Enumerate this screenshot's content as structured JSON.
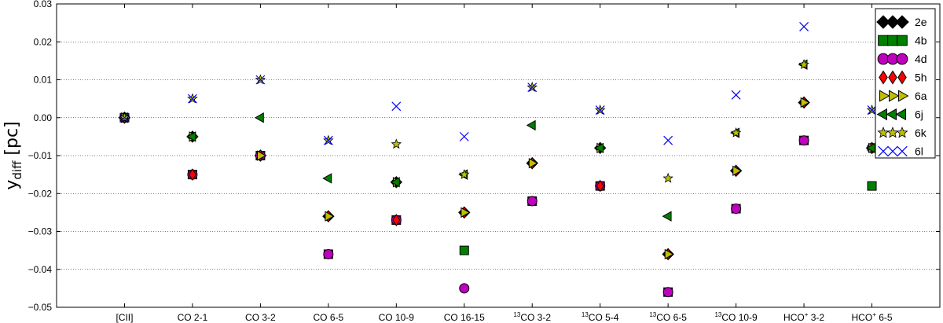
{
  "chart_data": {
    "type": "scatter",
    "ylabel_main": "y",
    "ylabel_sub": "diff",
    "ylabel_unit": "[pc]",
    "ylim": [
      -0.05,
      0.03
    ],
    "yticks": [
      0.03,
      0.02,
      0.01,
      0.0,
      -0.01,
      -0.02,
      -0.03,
      -0.04,
      -0.05
    ],
    "ytick_labels": [
      "0.03",
      "0.02",
      "0.01",
      "0.00",
      "−0.01",
      "−0.02",
      "−0.03",
      "−0.04",
      "−0.05"
    ],
    "grid": "horizontal dotted",
    "legend_position": "top-right",
    "categories": [
      {
        "pre": "",
        "main": "[CII]",
        "sup": ""
      },
      {
        "pre": "",
        "main": "CO 2-1",
        "sup": ""
      },
      {
        "pre": "",
        "main": "CO 3-2",
        "sup": ""
      },
      {
        "pre": "",
        "main": "CO 6-5",
        "sup": ""
      },
      {
        "pre": "",
        "main": "CO 10-9",
        "sup": ""
      },
      {
        "pre": "",
        "main": "CO 16-15",
        "sup": ""
      },
      {
        "pre": "13",
        "main": "CO 3-2",
        "sup": ""
      },
      {
        "pre": "13",
        "main": "CO 5-4",
        "sup": ""
      },
      {
        "pre": "13",
        "main": "CO 6-5",
        "sup": ""
      },
      {
        "pre": "13",
        "main": "CO 10-9",
        "sup": ""
      },
      {
        "pre": "",
        "main": "HCO 3-2",
        "sup": "+"
      },
      {
        "pre": "",
        "main": "HCO 6-5",
        "sup": "+"
      }
    ],
    "series": [
      {
        "name": "2e",
        "marker": "diamond",
        "color": "#000000",
        "values": [
          0,
          -0.005,
          -0.01,
          -0.026,
          -0.017,
          -0.025,
          -0.012,
          -0.008,
          -0.036,
          -0.014,
          0.004,
          -0.008
        ]
      },
      {
        "name": "4b",
        "marker": "square",
        "color": "#008000",
        "values": [
          0,
          -0.015,
          -0.01,
          -0.036,
          -0.027,
          -0.035,
          -0.022,
          -0.018,
          -0.046,
          -0.024,
          -0.006,
          -0.018
        ]
      },
      {
        "name": "4d",
        "marker": "circle",
        "color": "#bf00bf",
        "values": [
          0,
          -0.015,
          -0.01,
          -0.036,
          -0.027,
          -0.045,
          -0.022,
          -0.018,
          -0.046,
          -0.024,
          -0.006,
          -0.008
        ]
      },
      {
        "name": "5h",
        "marker": "thin-diamond",
        "color": "#ff0000",
        "values": [
          0,
          -0.015,
          -0.01,
          -0.026,
          -0.027,
          -0.025,
          -0.012,
          -0.018,
          -0.036,
          -0.014,
          0.004,
          -0.008
        ]
      },
      {
        "name": "6a",
        "marker": "triangle-right",
        "color": "#bfbf00",
        "values": [
          0,
          -0.005,
          -0.01,
          -0.026,
          -0.017,
          -0.025,
          -0.012,
          -0.008,
          -0.036,
          -0.014,
          0.004,
          -0.008
        ]
      },
      {
        "name": "6j",
        "marker": "triangle-left",
        "color": "#008000",
        "values": [
          0,
          -0.005,
          0.0,
          -0.016,
          -0.017,
          -0.015,
          -0.002,
          -0.008,
          -0.026,
          -0.004,
          0.014,
          -0.008
        ]
      },
      {
        "name": "6k",
        "marker": "star",
        "color": "#bfbf00",
        "values": [
          0,
          0.005,
          0.01,
          -0.006,
          -0.007,
          -0.015,
          0.008,
          0.002,
          -0.016,
          -0.004,
          0.014,
          0.002
        ]
      },
      {
        "name": "6l",
        "marker": "x",
        "color": "#0000ff",
        "values": [
          0,
          0.005,
          0.01,
          -0.006,
          0.003,
          -0.005,
          0.008,
          0.002,
          -0.006,
          0.006,
          0.024,
          0.002
        ]
      }
    ]
  }
}
